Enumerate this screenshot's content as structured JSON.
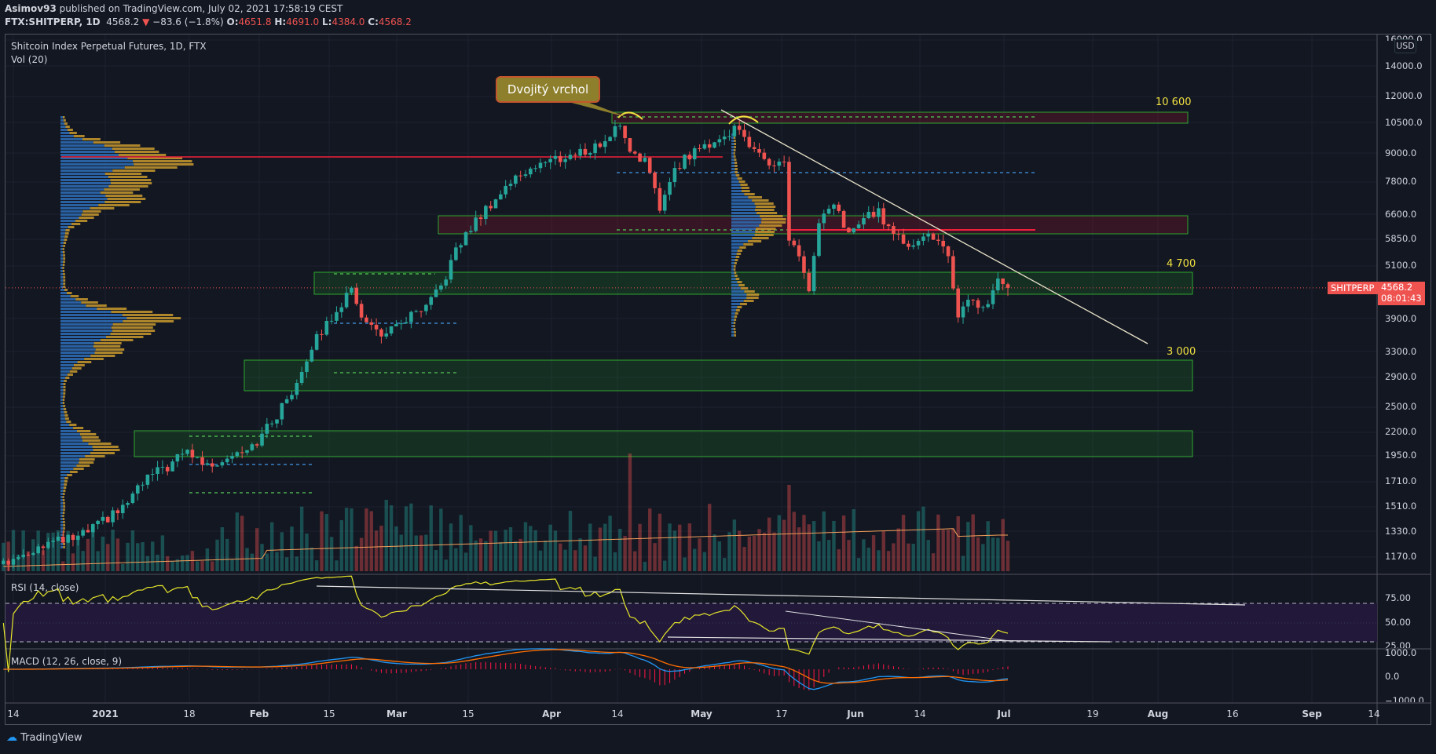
{
  "header": {
    "author": "Asimov93",
    "published": "published on TradingView.com, July 02, 2021 17:58:19 CEST",
    "symbol": "FTX:SHITPERP, 1D",
    "last": "4568.2",
    "change": "−83.6 (−1.8%)",
    "o_label": "O:",
    "o": "4651.8",
    "h_label": "H:",
    "h": "4691.0",
    "l_label": "L:",
    "l": "4384.0",
    "c_label": "C:",
    "c": "4568.2"
  },
  "chart": {
    "title": "Shitcoin Index Perpetual Futures, 1D, FTX",
    "volume_label": "Vol (20)",
    "currency": "USD",
    "symbol_tag": "SHITPERP",
    "price_tag": "4568.2",
    "countdown": "08:01:43",
    "annotation": "Dvojitý vrchol",
    "levels": [
      {
        "label": "10 600",
        "value": 10600
      },
      {
        "label": "4 700",
        "value": 4700
      },
      {
        "label": "3 000",
        "value": 3000
      }
    ],
    "price_ticks": [
      "16000.0",
      "14000.0",
      "12000.0",
      "10500.0",
      "9000.0",
      "7800.0",
      "6600.0",
      "5850.0",
      "5100.0",
      "3900.0",
      "3300.0",
      "2900.0",
      "2500.0",
      "2200.0",
      "1950.0",
      "1710.0",
      "1510.0",
      "1330.0",
      "1170.0"
    ],
    "rsi_label": "RSI (14, close)",
    "rsi_ticks": [
      "75.00",
      "50.00",
      "25.00"
    ],
    "macd_label": "MACD (12, 26, close, 9)",
    "macd_ticks": [
      "1000.0",
      "0.0",
      "−1000.0"
    ],
    "time_ticks": [
      "14",
      "2021",
      "18",
      "Feb",
      "15",
      "Mar",
      "15",
      "Apr",
      "14",
      "May",
      "17",
      "Jun",
      "14",
      "Jul",
      "19",
      "Aug",
      "16",
      "Sep",
      "14"
    ],
    "brand": "TradingView",
    "colors": {
      "up": "#26a69a",
      "down": "#ef5350",
      "rsi": "#e6e62a",
      "macd": "#2196f3",
      "signal": "#ff6d00",
      "level": "#f0e040"
    }
  },
  "chart_data": {
    "type": "candlestick",
    "x_unit": "days since 2020-12-14",
    "scale": "log",
    "ylim": [
      1100,
      16000
    ],
    "close_path": [
      [
        -2,
        1130
      ],
      [
        6,
        1250
      ],
      [
        13,
        1290
      ],
      [
        18,
        1400
      ],
      [
        22,
        1500
      ],
      [
        27,
        1750
      ],
      [
        31,
        1850
      ],
      [
        35,
        2000
      ],
      [
        39,
        1850
      ],
      [
        45,
        2000
      ],
      [
        49,
        2100
      ],
      [
        53,
        2400
      ],
      [
        56,
        2700
      ],
      [
        60,
        3400
      ],
      [
        65,
        4100
      ],
      [
        68,
        4500
      ],
      [
        71,
        3800
      ],
      [
        75,
        3600
      ],
      [
        79,
        3900
      ],
      [
        83,
        4100
      ],
      [
        86,
        4600
      ],
      [
        89,
        5500
      ],
      [
        92,
        6200
      ],
      [
        96,
        7000
      ],
      [
        100,
        7800
      ],
      [
        104,
        8400
      ],
      [
        108,
        8700
      ],
      [
        112,
        8900
      ],
      [
        116,
        9200
      ],
      [
        119,
        9600
      ],
      [
        122,
        10500
      ],
      [
        124,
        9200
      ],
      [
        127,
        8700
      ],
      [
        130,
        6800
      ],
      [
        132,
        8000
      ],
      [
        135,
        8800
      ],
      [
        140,
        9500
      ],
      [
        143,
        9800
      ],
      [
        146,
        10400
      ],
      [
        149,
        9000
      ],
      [
        152,
        8700
      ],
      [
        155,
        8600
      ],
      [
        156,
        5800
      ],
      [
        158,
        5400
      ],
      [
        160,
        4500
      ],
      [
        162,
        6300
      ],
      [
        165,
        6900
      ],
      [
        168,
        6000
      ],
      [
        171,
        6500
      ],
      [
        174,
        6700
      ],
      [
        177,
        6000
      ],
      [
        180,
        5700
      ],
      [
        183,
        6000
      ],
      [
        186,
        5800
      ],
      [
        188,
        5300
      ],
      [
        190,
        4000
      ],
      [
        193,
        4300
      ],
      [
        195,
        4100
      ],
      [
        198,
        4700
      ],
      [
        200,
        4568.2
      ]
    ],
    "last_candle": {
      "open": 4651.8,
      "high": 4691.0,
      "low": 4384.0,
      "close": 4568.2
    }
  }
}
